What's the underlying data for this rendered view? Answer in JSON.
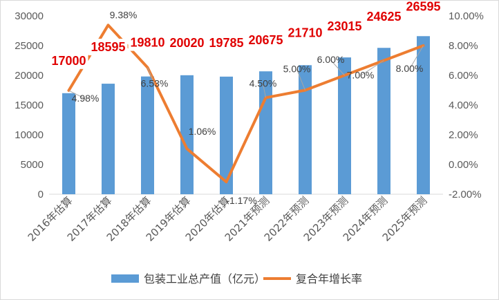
{
  "chart_data": {
    "type": "bar+line",
    "categories": [
      "2016年估算",
      "2017年估算",
      "2018年估算",
      "2019年估算",
      "2020年估算",
      "2021年预测",
      "2022年预测",
      "2023年预测",
      "2024年预测",
      "2025年预测"
    ],
    "series": [
      {
        "name": "包装工业总产值（亿元）",
        "type": "bar",
        "axis": "left",
        "color": "#5b9bd5",
        "values": [
          17000,
          18595,
          19810,
          20020,
          19785,
          20675,
          21710,
          23015,
          24625,
          26595
        ],
        "labels": [
          "17000",
          "18595",
          "19810",
          "20020",
          "19785",
          "20675",
          "21710",
          "23015",
          "24625",
          "26595"
        ]
      },
      {
        "name": "复合年增长率",
        "type": "line",
        "axis": "right",
        "color": "#ed7d31",
        "values": [
          4.98,
          9.38,
          6.53,
          1.06,
          -1.17,
          4.5,
          5.0,
          6.0,
          7.0,
          8.0
        ],
        "labels": [
          "4.98%",
          "9.38%",
          "6.53%",
          "1.06%",
          "-1.17%",
          "4.50%",
          "5.00%",
          "6.00%",
          "7.00%",
          "8.00%"
        ]
      }
    ],
    "y_left": {
      "min": 0,
      "max": 30000,
      "step": 5000,
      "ticks": [
        "0",
        "5000",
        "10000",
        "15000",
        "20000",
        "25000",
        "30000"
      ]
    },
    "y_right": {
      "min": -2,
      "max": 10,
      "step": 2,
      "ticks": [
        "-2.00%",
        "0.00%",
        "2.00%",
        "4.00%",
        "6.00%",
        "8.00%",
        "10.00%"
      ]
    },
    "grid": false,
    "legend_position": "bottom"
  }
}
